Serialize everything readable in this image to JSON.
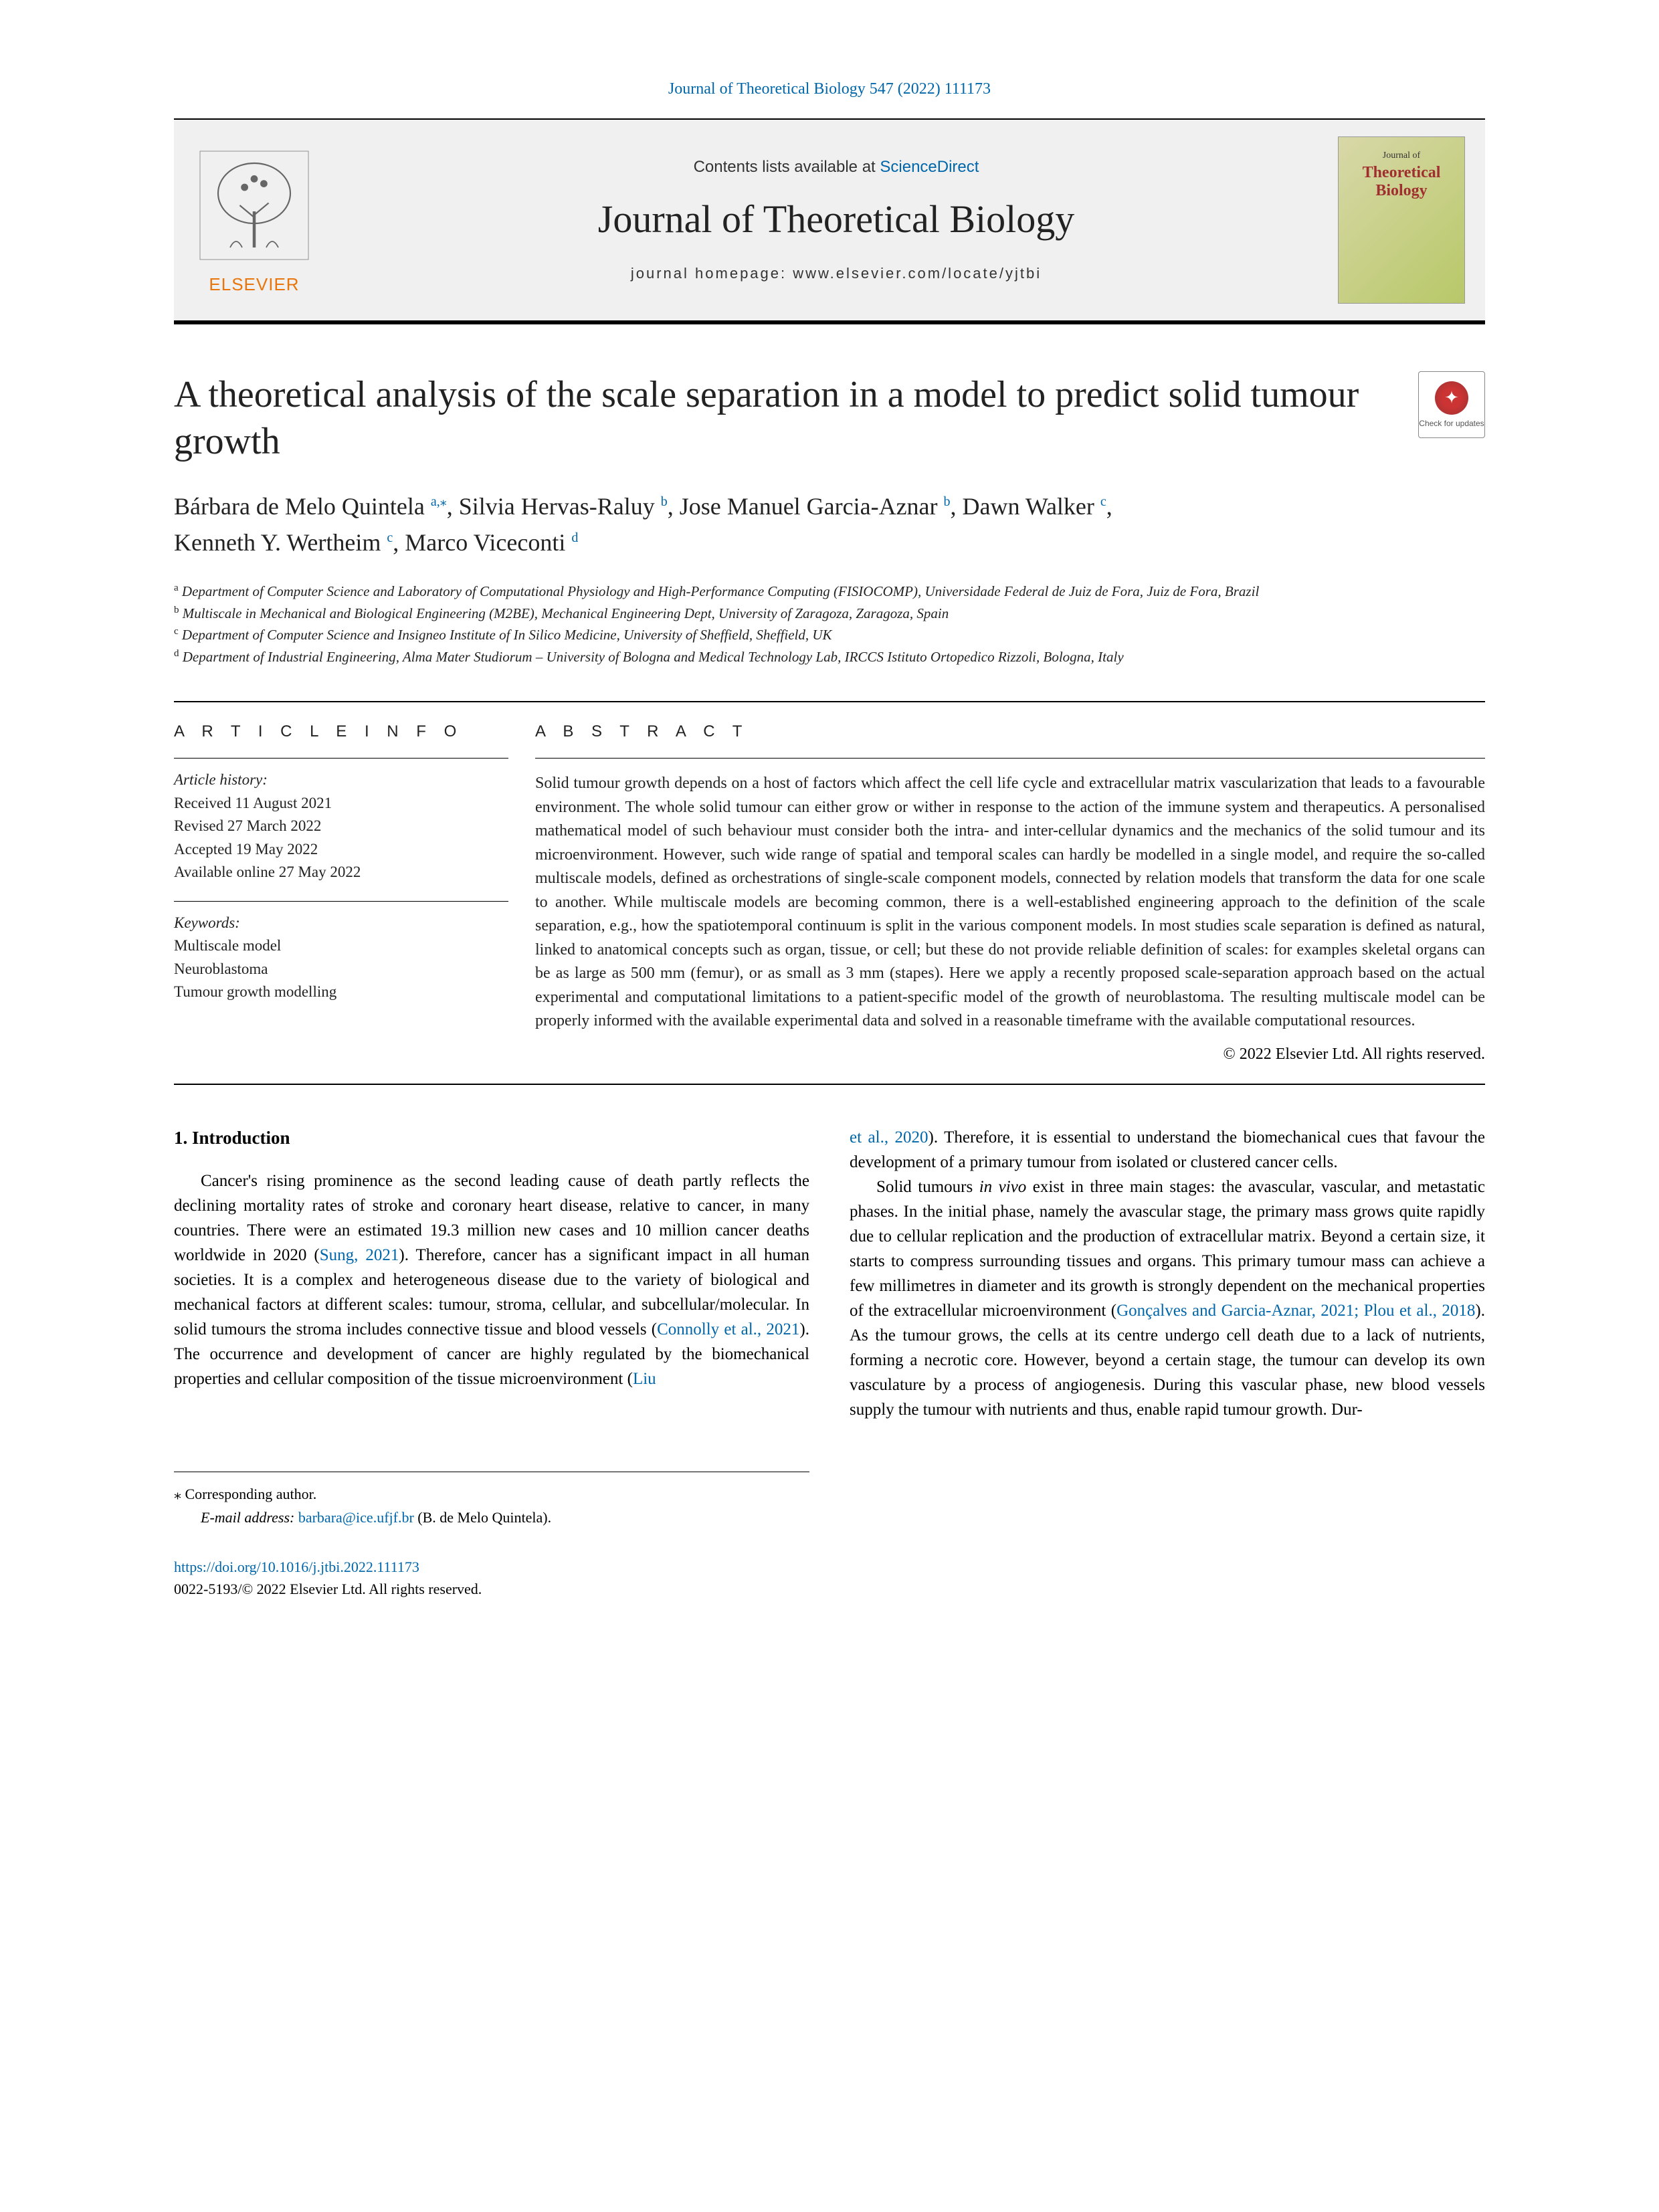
{
  "header": {
    "citation": "Journal of Theoretical Biology 547 (2022) 111173",
    "contents_prefix": "Contents lists available at ",
    "contents_link": "ScienceDirect",
    "journal_title": "Journal of Theoretical Biology",
    "homepage_prefix": "journal homepage: ",
    "homepage_url": "www.elsevier.com/locate/yjtbi",
    "publisher": "ELSEVIER",
    "cover": {
      "line1": "Journal of",
      "line2": "Theoretical",
      "line3": "Biology"
    },
    "check_updates": "Check for updates"
  },
  "article": {
    "title": "A theoretical analysis of the scale separation in a model to predict solid tumour growth",
    "authors_html": "Bárbara de Melo Quintela|a,*|, Silvia Hervas-Raluy|b|, Jose Manuel Garcia-Aznar|b|, Dawn Walker|c|, Kenneth Y. Wertheim|c|, Marco Viceconti|d|"
  },
  "affiliations": {
    "a": "Department of Computer Science and Laboratory of Computational Physiology and High-Performance Computing (FISIOCOMP), Universidade Federal de Juiz de Fora, Juiz de Fora, Brazil",
    "b": "Multiscale in Mechanical and Biological Engineering (M2BE), Mechanical Engineering Dept, University of Zaragoza, Zaragoza, Spain",
    "c": "Department of Computer Science and Insigneo Institute of In Silico Medicine, University of Sheffield, Sheffield, UK",
    "d": "Department of Industrial Engineering, Alma Mater Studiorum – University of Bologna and Medical Technology Lab, IRCCS Istituto Ortopedico Rizzoli, Bologna, Italy"
  },
  "info": {
    "heading": "A R T I C L E   I N F O",
    "history_label": "Article history:",
    "received": "Received 11 August 2021",
    "revised": "Revised 27 March 2022",
    "accepted": "Accepted 19 May 2022",
    "online": "Available online 27 May 2022",
    "keywords_label": "Keywords:",
    "keywords": [
      "Multiscale model",
      "Neuroblastoma",
      "Tumour growth modelling"
    ]
  },
  "abstract": {
    "heading": "A B S T R A C T",
    "text": "Solid tumour growth depends on a host of factors which affect the cell life cycle and extracellular matrix vascularization that leads to a favourable environment. The whole solid tumour can either grow or wither in response to the action of the immune system and therapeutics. A personalised mathematical model of such behaviour must consider both the intra- and inter-cellular dynamics and the mechanics of the solid tumour and its microenvironment. However, such wide range of spatial and temporal scales can hardly be modelled in a single model, and require the so-called multiscale models, defined as orchestrations of single-scale component models, connected by relation models that transform the data for one scale to another. While multiscale models are becoming common, there is a well-established engineering approach to the definition of the scale separation, e.g., how the spatiotemporal continuum is split in the various component models. In most studies scale separation is defined as natural, linked to anatomical concepts such as organ, tissue, or cell; but these do not provide reliable definition of scales: for examples skeletal organs can be as large as 500 mm (femur), or as small as 3 mm (stapes). Here we apply a recently proposed scale-separation approach based on the actual experimental and computational limitations to a patient-specific model of the growth of neuroblastoma. The resulting multiscale model can be properly informed with the available experimental data and solved in a reasonable timeframe with the available computational resources.",
    "copyright": "© 2022 Elsevier Ltd. All rights reserved."
  },
  "body": {
    "section_heading": "1. Introduction",
    "col1_p1a": "Cancer's rising prominence as the second leading cause of death partly reflects the declining mortality rates of stroke and coronary heart disease, relative to cancer, in many countries. There were an estimated 19.3 million new cases and 10 million cancer deaths worldwide in 2020 (",
    "col1_ref1": "Sung, 2021",
    "col1_p1b": "). Therefore, cancer has a significant impact in all human societies. It is a complex and heterogeneous disease due to the variety of biological and mechanical factors at different scales: tumour, stroma, cellular, and subcellular/molecular. In solid tumours the stroma includes connective tissue and blood vessels (",
    "col1_ref2": "Connolly et al., 2021",
    "col1_p1c": "). The occurrence and development of cancer are highly regulated by the biomechanical properties and cellular composition of the tissue microenvironment (",
    "col1_ref3": "Liu",
    "col2_ref1": "et al., 2020",
    "col2_p1a": "). Therefore, it is essential to understand the biomechanical cues that favour the development of a primary tumour from isolated or clustered cancer cells.",
    "col2_p2a": "Solid tumours ",
    "col2_invivo": "in vivo",
    "col2_p2b": " exist in three main stages: the avascular, vascular, and metastatic phases. In the initial phase, namely the avascular stage, the primary mass grows quite rapidly due to cellular replication and the production of extracellular matrix. Beyond a certain size, it starts to compress surrounding tissues and organs. This primary tumour mass can achieve a few millimetres in diameter and its growth is strongly dependent on the mechanical properties of the extracellular microenvironment (",
    "col2_ref2": "Gonçalves and Garcia-Aznar, 2021; Plou et al., 2018",
    "col2_p2c": "). As the tumour grows, the cells at its centre undergo cell death due to a lack of nutrients, forming a necrotic core. However, beyond a certain stage, the tumour can develop its own vasculature by a process of angiogenesis. During this vascular phase, new blood vessels supply the tumour with nutrients and thus, enable rapid tumour growth. Dur-"
  },
  "footer": {
    "corresponding": "⁎ Corresponding author.",
    "email_label": "E-mail address: ",
    "email": "barbara@ice.ufjf.br",
    "email_name": " (B. de Melo Quintela).",
    "doi": "https://doi.org/10.1016/j.jtbi.2022.111173",
    "issn_copyright": "0022-5193/© 2022 Elsevier Ltd. All rights reserved."
  },
  "colors": {
    "link": "#0066aa",
    "elsevier": "#e8760c",
    "text": "#222222"
  }
}
